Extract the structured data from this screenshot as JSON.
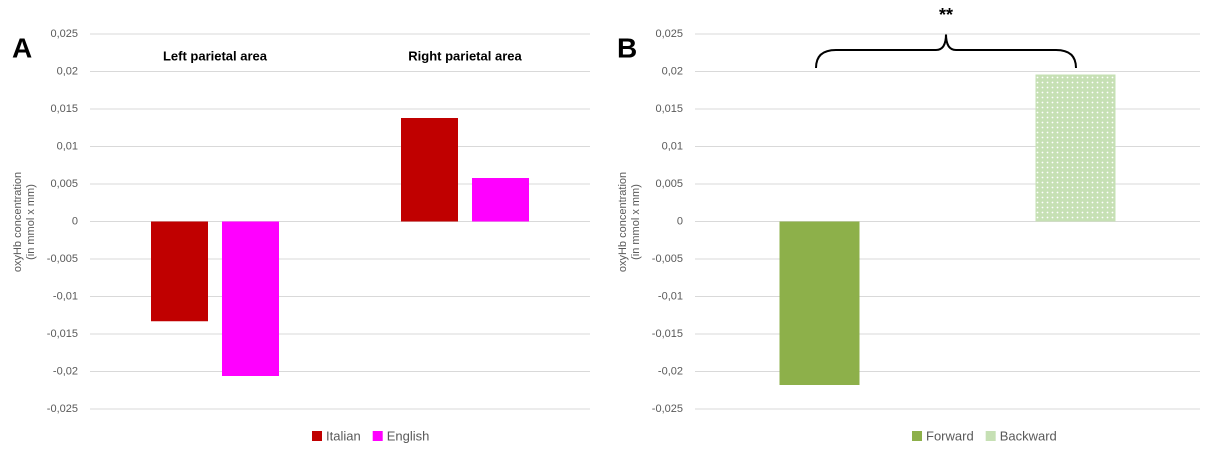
{
  "chart_data": [
    {
      "type": "bar",
      "panel": "A",
      "ylabel": [
        "oxyHb concentration",
        "(in mmol x mm)"
      ],
      "categories": [
        "Left parietal area",
        "Right parietal area"
      ],
      "series": [
        {
          "name": "Italian",
          "color": "#c00000",
          "values": [
            -0.0133,
            0.0138
          ]
        },
        {
          "name": "English",
          "color": "#ff00ff",
          "values": [
            -0.0206,
            0.0058
          ]
        }
      ],
      "ylim": [
        -0.025,
        0.025
      ],
      "yticks": [
        {
          "value": -0.025,
          "label": "-0,025"
        },
        {
          "value": -0.02,
          "label": "-0,02"
        },
        {
          "value": -0.015,
          "label": "-0,015"
        },
        {
          "value": -0.01,
          "label": "-0,01"
        },
        {
          "value": -0.005,
          "label": "-0,005"
        },
        0,
        {
          "value": 0.005,
          "label": "0,005"
        },
        {
          "value": 0.01,
          "label": "0,01"
        },
        {
          "value": 0.015,
          "label": "0,015"
        },
        {
          "value": 0.02,
          "label": "0,02"
        },
        {
          "value": 0.025,
          "label": "0,025"
        }
      ],
      "grid": true,
      "legend": "bottom"
    },
    {
      "type": "bar",
      "panel": "B",
      "ylabel": [
        "oxyHb concentration",
        "(in mmol x mm)"
      ],
      "categories": [
        null
      ],
      "series": [
        {
          "name": "Forward",
          "color": "#8db04a",
          "values": [
            -0.0218
          ]
        },
        {
          "name": "Backward",
          "color": "#c6e0b4",
          "values": [
            0.0196
          ]
        }
      ],
      "annotation": "**",
      "ylim": [
        -0.025,
        0.025
      ],
      "yticks": [
        {
          "value": -0.025,
          "label": "-0,025"
        },
        {
          "value": -0.02,
          "label": "-0,02"
        },
        {
          "value": -0.015,
          "label": "-0,015"
        },
        {
          "value": -0.01,
          "label": "-0,01"
        },
        {
          "value": -0.005,
          "label": "-0,005"
        },
        0,
        {
          "value": 0.005,
          "label": "0,005"
        },
        {
          "value": 0.01,
          "label": "0,01"
        },
        {
          "value": 0.015,
          "label": "0,015"
        },
        {
          "value": 0.02,
          "label": "0,02"
        },
        {
          "value": 0.025,
          "label": "0,025"
        }
      ],
      "grid": true,
      "legend": "bottom"
    }
  ]
}
